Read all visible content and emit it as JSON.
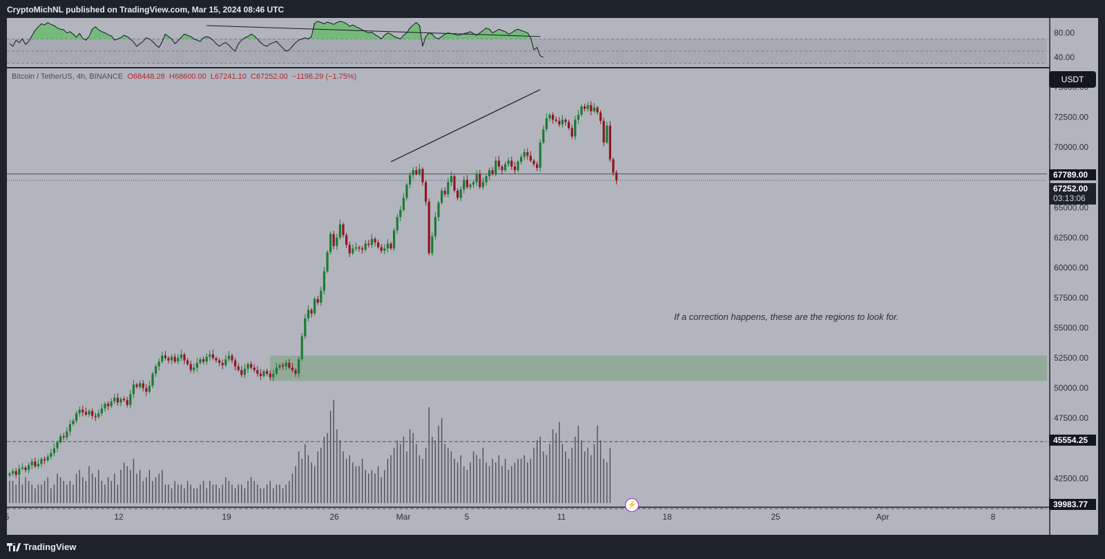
{
  "header": {
    "attribution": "CryptoMichNL published on TradingView.com, Mar 15, 2024 08:46 UTC"
  },
  "footer": {
    "brand": "TradingView"
  },
  "legend": {
    "symbol": "Bitcoin / TetherUS, 4h, BINANCE",
    "open": "O68448.28",
    "high": "H68600.00",
    "low": "L67241.10",
    "close": "C67252.00",
    "change": "−1196.29 (−1.75%)"
  },
  "currency_button": "USDT",
  "price_tags": {
    "high_line": "67789.00",
    "last_price": "67252.00",
    "countdown": "03:13:06",
    "support_upper": "45554.25",
    "support_lower": "39983.77"
  },
  "annotation": "If a correction happens, these are the regions to look for.",
  "colors": {
    "background": "#b2b5be",
    "up_candle": "#1b7a33",
    "down_candle": "#8f1621",
    "zone_fill": "#8fa894",
    "dark": "#131722"
  },
  "chart_data": [
    {
      "type": "line",
      "title": "",
      "y_ticks": [
        "80.00",
        "40.00"
      ],
      "ylim": [
        25,
        100
      ],
      "reference_lines": [
        70,
        50,
        30
      ],
      "divergence_line": {
        "from": [
          62,
          92
        ],
        "to": [
          167,
          74
        ]
      },
      "series": [
        {
          "values": [
            62,
            58,
            68,
            64,
            70,
            61,
            66,
            75,
            84,
            90,
            95,
            93,
            97,
            94,
            92,
            88,
            86,
            85,
            80,
            82,
            78,
            73,
            79,
            71,
            68,
            74,
            86,
            90,
            85,
            82,
            80,
            77,
            75,
            68,
            70,
            72,
            76,
            74,
            70,
            65,
            58,
            62,
            66,
            72,
            70,
            66,
            60,
            56,
            65,
            78,
            74,
            70,
            62,
            67,
            73,
            78,
            76,
            74,
            70,
            68,
            66,
            72,
            74,
            72,
            68,
            62,
            58,
            62,
            64,
            60,
            54,
            50,
            62,
            68,
            72,
            74,
            78,
            75,
            70,
            64,
            60,
            58,
            62,
            64,
            66,
            60,
            55,
            50,
            52,
            58,
            64,
            68,
            70,
            72,
            70,
            74,
            96,
            99,
            97,
            95,
            98,
            96,
            94,
            97,
            99,
            98,
            95,
            91,
            93,
            90,
            88,
            85,
            82,
            80,
            81,
            77,
            74,
            70,
            76,
            80,
            78,
            74,
            72,
            70,
            76,
            80,
            88,
            93,
            97,
            92,
            58,
            74,
            80,
            78,
            72,
            70,
            74,
            78,
            80,
            79,
            78,
            76,
            77,
            79,
            80,
            82,
            79,
            76,
            80,
            84,
            88,
            86,
            80,
            83,
            86,
            84,
            82,
            78,
            80,
            84,
            86,
            84,
            82,
            80,
            72,
            52,
            56,
            42,
            40
          ]
        }
      ]
    },
    {
      "type": "candlestick",
      "title": "Bitcoin / TetherUS, 4h, BINANCE",
      "y_ticks": [
        "75000.00",
        "72500.00",
        "70000.00",
        "65000.00",
        "62500.00",
        "60000.00",
        "57500.00",
        "55000.00",
        "52500.00",
        "50000.00",
        "47500.00",
        "42500.00"
      ],
      "ylim": [
        38500,
        76500
      ],
      "x_ticks": [
        "5",
        "12",
        "19",
        "26",
        "Mar",
        "5",
        "11",
        "18",
        "25",
        "Apr",
        "8"
      ],
      "horizontal_lines": [
        67789.0,
        67252.0,
        45554.25,
        39983.77
      ],
      "zone": {
        "from_bar": 82,
        "low": 50600,
        "high": 52700
      },
      "trendline": {
        "from": [
          120,
          68800
        ],
        "to": [
          167,
          74800
        ]
      },
      "close": [
        42900,
        43100,
        42800,
        43300,
        43400,
        43200,
        43600,
        43900,
        43500,
        43700,
        44100,
        44000,
        44300,
        44600,
        45000,
        45500,
        46000,
        45900,
        46400,
        47000,
        47300,
        47900,
        48200,
        48000,
        47800,
        48100,
        47700,
        47600,
        47900,
        48300,
        48700,
        48500,
        48900,
        49200,
        48800,
        49100,
        49000,
        48600,
        49500,
        50300,
        50100,
        50400,
        50000,
        49700,
        50200,
        51200,
        51800,
        52200,
        52700,
        52500,
        52300,
        52600,
        52200,
        52500,
        52800,
        52300,
        52000,
        51500,
        51700,
        52100,
        52400,
        52200,
        52600,
        52800,
        52500,
        52300,
        52100,
        51900,
        52400,
        52700,
        52300,
        51800,
        51500,
        51100,
        51600,
        52000,
        51700,
        51500,
        51200,
        51000,
        51400,
        51200,
        50900,
        51200,
        51700,
        51900,
        51800,
        52100,
        51700,
        51500,
        51200,
        52400,
        54300,
        55800,
        56500,
        56200,
        57400,
        57100,
        58100,
        59700,
        61300,
        62800,
        61800,
        62500,
        63600,
        62700,
        61900,
        61200,
        61600,
        61700,
        61600,
        61500,
        62000,
        61900,
        62400,
        62100,
        61700,
        61400,
        61600,
        62000,
        61600,
        63100,
        64200,
        64800,
        65800,
        66900,
        67700,
        68100,
        67800,
        68200,
        67100,
        65500,
        61200,
        62600,
        64200,
        65400,
        66400,
        66100,
        67100,
        67600,
        66400,
        65800,
        66500,
        67300,
        66700,
        66900,
        67100,
        67800,
        66700,
        67100,
        67600,
        68100,
        67800,
        68900,
        68400,
        68100,
        68600,
        68900,
        68400,
        68100,
        68800,
        69200,
        69600,
        69300,
        68900,
        68600,
        68300,
        70400,
        71500,
        72400,
        72700,
        72300,
        72200,
        71900,
        72300,
        72100,
        71600,
        70900,
        72300,
        72700,
        73400,
        73200,
        73500,
        73000,
        73300,
        72900,
        72200,
        70400,
        71800,
        69000,
        67900,
        67252
      ]
    },
    {
      "type": "bar",
      "title": "Volume",
      "values": [
        6,
        6,
        5,
        7,
        5,
        7,
        6,
        5,
        4,
        5,
        5,
        6,
        7,
        4,
        5,
        8,
        7,
        6,
        5,
        6,
        5,
        8,
        9,
        7,
        6,
        10,
        8,
        7,
        9,
        6,
        5,
        7,
        6,
        8,
        5,
        9,
        11,
        10,
        9,
        12,
        8,
        9,
        6,
        7,
        9,
        6,
        7,
        8,
        9,
        5,
        5,
        4,
        6,
        5,
        5,
        4,
        6,
        5,
        4,
        4,
        5,
        6,
        4,
        6,
        5,
        5,
        4,
        5,
        7,
        6,
        5,
        4,
        5,
        5,
        4,
        6,
        7,
        6,
        5,
        4,
        4,
        5,
        6,
        4,
        5,
        5,
        4,
        5,
        6,
        8,
        10,
        14,
        12,
        16,
        13,
        11,
        10,
        14,
        15,
        18,
        19,
        25,
        28,
        20,
        17,
        14,
        12,
        13,
        11,
        10,
        10,
        12,
        9,
        8,
        9,
        8,
        10,
        7,
        9,
        12,
        13,
        15,
        17,
        16,
        18,
        14,
        20,
        19,
        16,
        13,
        12,
        15,
        26,
        18,
        17,
        21,
        23,
        16,
        15,
        14,
        12,
        11,
        13,
        10,
        9,
        11,
        14,
        13,
        12,
        15,
        11,
        10,
        12,
        11,
        13,
        10,
        12,
        9,
        10,
        11,
        12,
        12,
        13,
        11,
        12,
        15,
        17,
        18,
        14,
        13,
        16,
        20,
        19,
        22,
        16,
        14,
        12,
        15,
        18,
        21,
        17,
        14,
        15,
        13,
        16,
        21,
        17,
        12,
        11,
        15
      ]
    }
  ]
}
